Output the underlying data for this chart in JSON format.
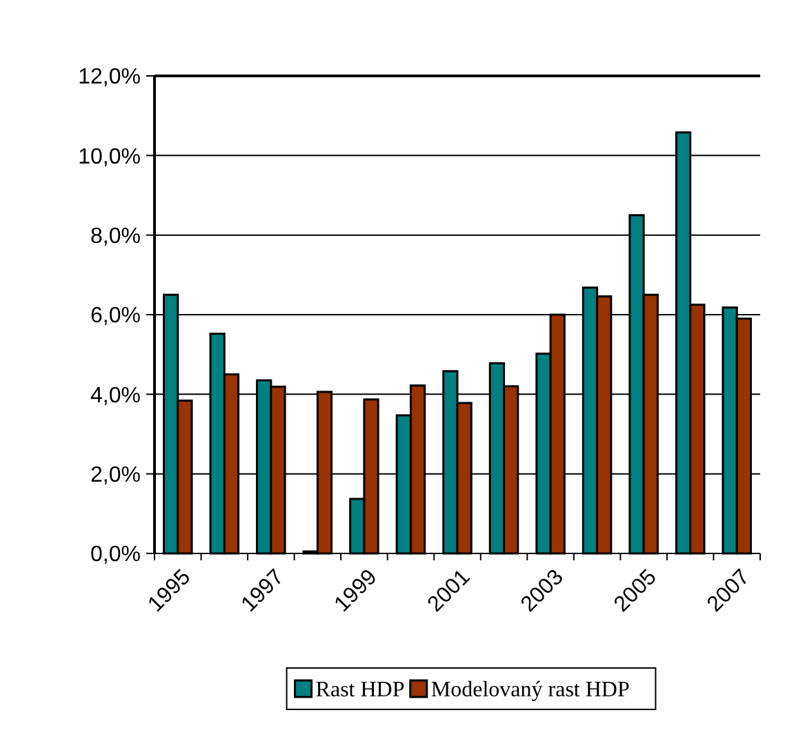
{
  "chart_data": {
    "type": "bar",
    "categories": [
      "1995",
      null,
      "1997",
      null,
      "1999",
      null,
      "2001",
      null,
      "2003",
      null,
      "2005",
      null,
      "2007"
    ],
    "series": [
      {
        "name": "Rast HDP",
        "color": "#008080",
        "values": [
          6.5,
          5.52,
          4.35,
          0.05,
          1.37,
          3.47,
          4.58,
          4.78,
          5.02,
          6.68,
          8.5,
          10.58,
          6.18
        ]
      },
      {
        "name": "Modelovaný rast HDP",
        "color": "#993300",
        "values": [
          3.84,
          4.5,
          4.19,
          4.06,
          3.87,
          4.22,
          3.78,
          4.2,
          6.0,
          6.46,
          6.5,
          6.25,
          5.9
        ]
      }
    ],
    "ylim": [
      0,
      12
    ],
    "yticks": [
      {
        "value": 0,
        "label": "0,0%"
      },
      {
        "value": 2,
        "label": "2,0%"
      },
      {
        "value": 4,
        "label": "4,0%"
      },
      {
        "value": 6,
        "label": "6,0%"
      },
      {
        "value": 8,
        "label": "8,0%"
      },
      {
        "value": 10,
        "label": "10,0%"
      },
      {
        "value": 12,
        "label": "12,0%"
      }
    ],
    "grid": "y",
    "legend": "bottom"
  }
}
